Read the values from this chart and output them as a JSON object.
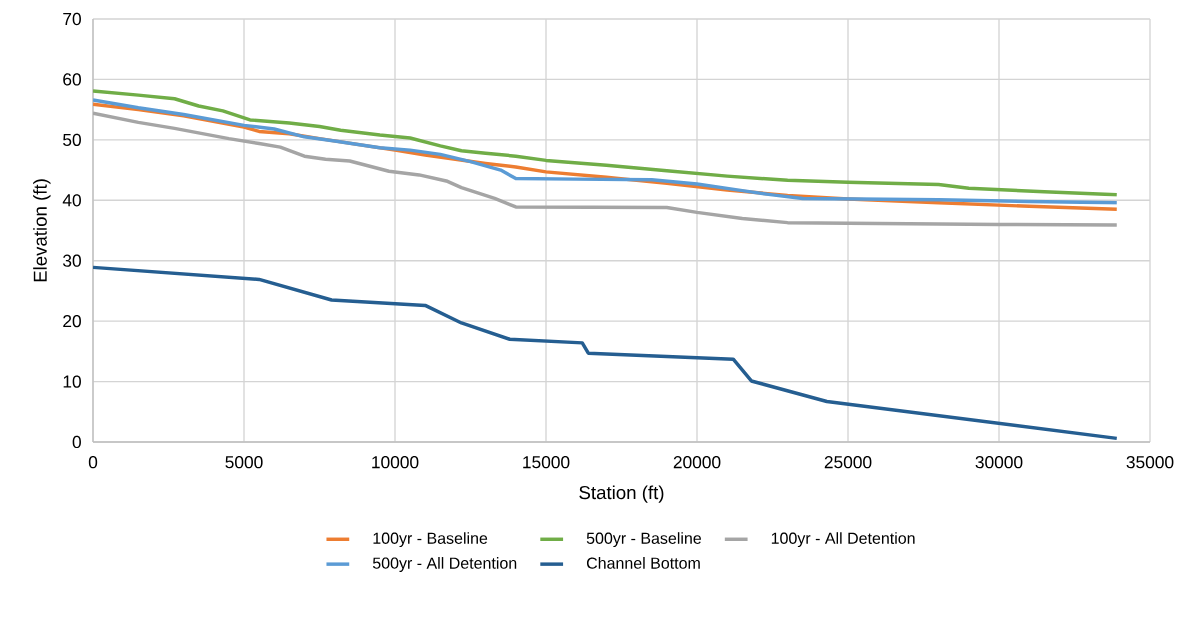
{
  "chart_data": {
    "type": "line",
    "xlabel": "Station (ft)",
    "ylabel": "Elevation (ft)",
    "xlim": [
      0,
      35000
    ],
    "ylim": [
      0,
      70
    ],
    "xticks": [
      0,
      5000,
      10000,
      15000,
      20000,
      25000,
      30000,
      35000
    ],
    "yticks": [
      0,
      10,
      20,
      30,
      40,
      50,
      60,
      70
    ],
    "grid": true,
    "legend": "bottom",
    "marker": "none",
    "line_style": "solid",
    "series": [
      {
        "name": "100yr - Baseline",
        "color": "#ed7d31",
        "x": [
          0,
          1500,
          3000,
          5000,
          5500,
          6500,
          7500,
          10000,
          11000,
          12000,
          13000,
          14000,
          15000,
          17000,
          19000,
          21000,
          23000,
          25000,
          28000,
          31000,
          33900
        ],
        "values": [
          55.9,
          55.0,
          54.0,
          52.1,
          51.4,
          51.0,
          50.2,
          48.3,
          47.5,
          46.8,
          46.1,
          45.5,
          44.7,
          43.8,
          42.8,
          41.7,
          40.8,
          40.2,
          39.6,
          39.0,
          38.5
        ]
      },
      {
        "name": "500yr - Baseline",
        "color": "#70ad47",
        "x": [
          0,
          1500,
          2700,
          3500,
          4300,
          5200,
          6500,
          7500,
          8200,
          9500,
          10500,
          11500,
          12200,
          13000,
          14000,
          15000,
          17000,
          19000,
          21000,
          23000,
          25000,
          28000,
          29000,
          31500,
          33900
        ],
        "values": [
          58.1,
          57.4,
          56.8,
          55.6,
          54.8,
          53.3,
          52.8,
          52.2,
          51.6,
          50.8,
          50.3,
          49.0,
          48.2,
          47.8,
          47.3,
          46.6,
          45.8,
          44.9,
          44.0,
          43.3,
          43.0,
          42.6,
          42.0,
          41.4,
          40.9
        ]
      },
      {
        "name": "100yr - All Detention",
        "color": "#a5a5a5",
        "x": [
          0,
          1500,
          2700,
          4500,
          5500,
          6200,
          7000,
          7700,
          8500,
          9800,
          10800,
          11700,
          12200,
          13300,
          14000,
          19000,
          20000,
          21500,
          23000,
          25000,
          30000,
          33900
        ],
        "values": [
          54.4,
          52.9,
          51.9,
          50.2,
          49.4,
          48.8,
          47.3,
          46.8,
          46.5,
          44.8,
          44.2,
          43.2,
          42.1,
          40.3,
          38.9,
          38.8,
          38.0,
          37.0,
          36.3,
          36.2,
          36.0,
          35.9
        ]
      },
      {
        "name": "500yr - All Detention",
        "color": "#5b9bd5",
        "x": [
          0,
          1500,
          3000,
          5000,
          6000,
          7000,
          8000,
          9500,
          10500,
          11500,
          12500,
          13500,
          14000,
          16000,
          18500,
          20000,
          21500,
          22500,
          23500,
          28000,
          31000,
          33900
        ],
        "values": [
          56.6,
          55.3,
          54.2,
          52.4,
          51.8,
          50.5,
          49.8,
          48.7,
          48.3,
          47.6,
          46.4,
          45.0,
          43.6,
          43.5,
          43.4,
          42.7,
          41.6,
          40.9,
          40.3,
          40.1,
          39.8,
          39.6
        ]
      },
      {
        "name": "Channel Bottom",
        "color": "#255e91",
        "x": [
          0,
          5500,
          7900,
          11000,
          12200,
          13800,
          16200,
          16400,
          21200,
          21800,
          24300,
          33900
        ],
        "values": [
          28.9,
          26.9,
          23.5,
          22.6,
          19.7,
          17.0,
          16.4,
          14.7,
          13.7,
          10.1,
          6.7,
          0.6
        ]
      }
    ]
  }
}
